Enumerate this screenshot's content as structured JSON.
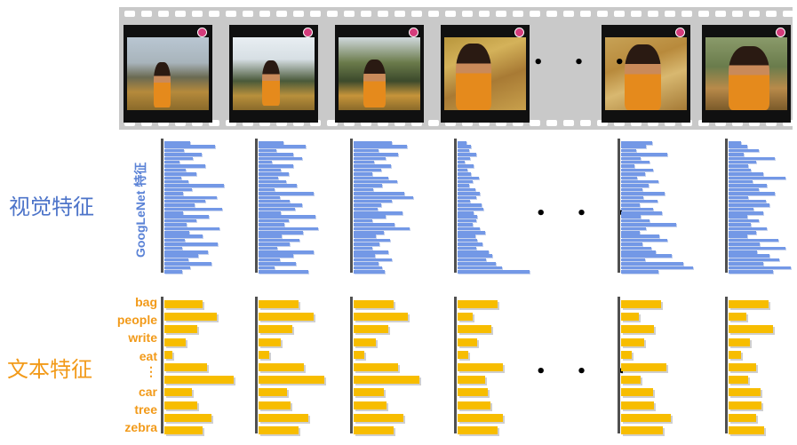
{
  "row_labels": {
    "visual": "视觉特征",
    "text": "文本特征"
  },
  "visual_axis_label": "GoogLeNet 特征",
  "ellipsis": "• • •",
  "words": [
    "bag",
    "people",
    "write",
    "eat",
    "⋮",
    "car",
    "tree",
    "zebra"
  ],
  "colors": {
    "visual_bars": "#7398e6",
    "text_bars": "#f7bd00",
    "visual_label": "#4d74c9",
    "text_label": "#f29a19",
    "film": "#c9c9c9"
  },
  "frames": [
    {
      "scene": "woman seated on hay beneath a tree, mountains behind",
      "visual": [
        0.42,
        0.82,
        0.31,
        0.6,
        0.45,
        0.24,
        0.66,
        0.34,
        0.52,
        0.27,
        0.38,
        0.95,
        0.44,
        0.3,
        0.84,
        0.66,
        0.48,
        0.93,
        0.3,
        0.72,
        0.52,
        0.35,
        0.88,
        0.4,
        0.62,
        0.33,
        0.85,
        0.29,
        0.7,
        0.54,
        0.38,
        0.76,
        0.42,
        0.28
      ],
      "text": [
        0.7,
        0.95,
        0.6,
        0.38,
        0.15,
        0.78,
        1.25,
        0.5,
        0.6,
        0.85,
        0.7
      ]
    },
    {
      "scene": "woman reading a book under a tree",
      "visual": [
        0.4,
        0.76,
        0.28,
        0.56,
        0.7,
        0.22,
        0.55,
        0.36,
        0.48,
        0.32,
        0.44,
        0.62,
        0.26,
        0.88,
        0.34,
        0.5,
        0.7,
        0.58,
        0.36,
        0.92,
        0.48,
        0.42,
        0.96,
        0.72,
        0.37,
        0.65,
        0.5,
        0.3,
        0.88,
        0.55,
        0.34,
        0.6,
        0.26,
        0.8
      ],
      "text": [
        0.72,
        1.0,
        0.62,
        0.4,
        0.2,
        0.82,
        1.2,
        0.52,
        0.58,
        0.9,
        0.72
      ]
    },
    {
      "scene": "woman writing in a notebook outdoors",
      "visual": [
        0.62,
        0.86,
        0.4,
        0.72,
        0.52,
        0.33,
        0.6,
        0.44,
        0.3,
        0.55,
        0.7,
        0.46,
        0.32,
        0.82,
        0.95,
        0.62,
        0.44,
        0.38,
        0.78,
        0.52,
        0.3,
        0.66,
        0.9,
        0.48,
        0.36,
        0.58,
        0.42,
        0.3,
        0.55,
        0.34,
        0.62,
        0.4,
        0.45,
        0.5
      ],
      "text": [
        0.72,
        0.98,
        0.63,
        0.4,
        0.2,
        0.8,
        1.2,
        0.55,
        0.6,
        0.9,
        0.72
      ]
    },
    {
      "scene": "close-up of woman resting on hay with papers",
      "visual": [
        0.14,
        0.22,
        0.18,
        0.3,
        0.2,
        0.12,
        0.26,
        0.16,
        0.22,
        0.34,
        0.24,
        0.18,
        0.28,
        0.36,
        0.3,
        0.2,
        0.38,
        0.42,
        0.26,
        0.32,
        0.3,
        0.24,
        0.36,
        0.44,
        0.28,
        0.32,
        0.4,
        0.3,
        0.5,
        0.56,
        0.46,
        0.62,
        0.72,
        1.15
      ],
      "text": [
        0.72,
        0.28,
        0.62,
        0.35,
        0.2,
        0.82,
        0.5,
        0.55,
        0.6,
        0.82,
        0.72
      ]
    },
    {
      "scene": "woman holding papers against hay",
      "visual": [
        0.5,
        0.4,
        0.24,
        0.74,
        0.32,
        0.46,
        0.22,
        0.52,
        0.38,
        0.26,
        0.6,
        0.44,
        0.34,
        0.7,
        0.36,
        0.58,
        0.3,
        0.52,
        0.66,
        0.32,
        0.46,
        0.88,
        0.4,
        0.3,
        0.62,
        0.74,
        0.34,
        0.48,
        0.56,
        0.82,
        0.38,
        1.0,
        1.15,
        0.6
      ],
      "text": [
        0.72,
        0.32,
        0.6,
        0.42,
        0.2,
        0.82,
        0.35,
        0.58,
        0.6,
        0.9,
        0.76
      ]
    },
    {
      "scene": "woman resting her chin on her hand",
      "visual": [
        0.2,
        0.3,
        0.48,
        0.24,
        0.74,
        0.44,
        0.32,
        0.36,
        0.55,
        0.92,
        0.38,
        0.62,
        0.48,
        0.74,
        0.32,
        0.6,
        0.66,
        0.4,
        0.55,
        0.3,
        0.48,
        0.36,
        0.62,
        0.44,
        0.3,
        0.8,
        0.5,
        0.92,
        0.46,
        0.66,
        0.82,
        0.56,
        1.0,
        0.72
      ],
      "text": [
        0.72,
        0.32,
        0.8,
        0.38,
        0.22,
        0.5,
        0.35,
        0.58,
        0.6,
        0.5,
        0.65
      ]
    }
  ]
}
